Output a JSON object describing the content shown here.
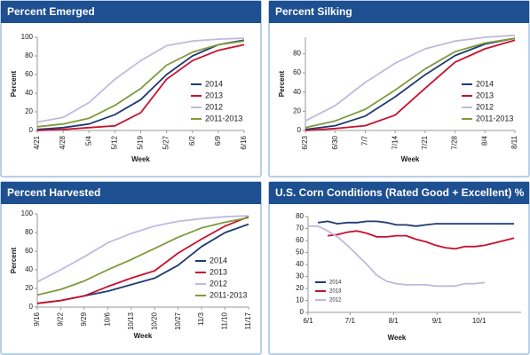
{
  "chart_data": [
    {
      "type": "line",
      "title": "Percent Emerged",
      "xlabel": "Week",
      "ylabel": "Percent",
      "categories": [
        "4/21",
        "4/28",
        "5/4",
        "5/12",
        "5/19",
        "5/27",
        "6/2",
        "6/9",
        "6/16"
      ],
      "ylim": [
        0,
        100
      ],
      "yticks": [
        0,
        20,
        40,
        60,
        80,
        100
      ],
      "legend": "lower right",
      "series": [
        {
          "name": "2014",
          "color": "#1f3a73",
          "values": [
            1,
            3,
            7,
            17,
            33,
            60,
            80,
            92,
            97
          ]
        },
        {
          "name": "2013",
          "color": "#c8102e",
          "values": [
            0,
            1,
            3,
            5,
            19,
            55,
            75,
            86,
            92
          ]
        },
        {
          "name": "2012",
          "color": "#c2b8de",
          "values": [
            9,
            14,
            30,
            55,
            75,
            91,
            96,
            98,
            99
          ]
        },
        {
          "name": "2011-2013",
          "color": "#7f9a3c",
          "values": [
            4,
            7,
            13,
            27,
            45,
            70,
            84,
            92,
            96
          ]
        }
      ]
    },
    {
      "type": "line",
      "title": "Percent Silking",
      "xlabel": "Week",
      "ylabel": "Percent",
      "categories": [
        "6/23",
        "6/30",
        "7/7",
        "7/14",
        "7/21",
        "7/28",
        "8/4",
        "8/11"
      ],
      "ylim": [
        0,
        97
      ],
      "yticks": [
        0,
        20,
        40,
        60,
        80
      ],
      "legend": "lower right",
      "series": [
        {
          "name": "2014",
          "color": "#1f3a73",
          "values": [
            1,
            5,
            15,
            35,
            58,
            78,
            90,
            96
          ]
        },
        {
          "name": "2013",
          "color": "#c8102e",
          "values": [
            0,
            2,
            5,
            16,
            44,
            71,
            85,
            94
          ]
        },
        {
          "name": "2012",
          "color": "#c2b8de",
          "values": [
            10,
            26,
            50,
            70,
            85,
            93,
            97,
            99
          ]
        },
        {
          "name": "2011-2013",
          "color": "#7f9a3c",
          "values": [
            3,
            10,
            22,
            42,
            64,
            82,
            91,
            96
          ]
        }
      ]
    },
    {
      "type": "line",
      "title": "Percent Harvested",
      "xlabel": "Week",
      "ylabel": "Percent",
      "categories": [
        "9/16",
        "9/22",
        "9/29",
        "10/6",
        "10/13",
        "10/20",
        "10/27",
        "11/3",
        "11/10",
        "11/17"
      ],
      "ylim": [
        0,
        100
      ],
      "yticks": [
        0,
        20,
        40,
        60,
        80,
        100
      ],
      "legend": "lower right",
      "series": [
        {
          "name": "2014",
          "color": "#1f3a73",
          "values": [
            4,
            7,
            12,
            17,
            24,
            31,
            45,
            65,
            80,
            89
          ]
        },
        {
          "name": "2013",
          "color": "#c8102e",
          "values": [
            4,
            7,
            12,
            22,
            31,
            39,
            58,
            73,
            87,
            97
          ]
        },
        {
          "name": "2012",
          "color": "#c2b8de",
          "values": [
            27,
            40,
            54,
            69,
            79,
            87,
            92,
            95,
            97,
            98
          ]
        },
        {
          "name": "2011-2013",
          "color": "#7f9a3c",
          "values": [
            13,
            19,
            28,
            40,
            51,
            63,
            75,
            85,
            91,
            96
          ]
        }
      ]
    },
    {
      "type": "dateline",
      "title": "U.S. Corn Conditions (Rated Good + Excellent) %",
      "xlabel": "Week",
      "xlim": [
        0,
        152
      ],
      "xticks": [
        {
          "value": 0,
          "label": "6/1"
        },
        {
          "value": 30,
          "label": "7/1"
        },
        {
          "value": 61,
          "label": "8/1"
        },
        {
          "value": 92,
          "label": "9/1"
        },
        {
          "value": 122,
          "label": "10/1"
        }
      ],
      "ylim": [
        0,
        80
      ],
      "yticks": [
        0,
        10,
        20,
        30,
        40,
        50,
        60,
        70,
        80
      ],
      "legend": "center left",
      "series": [
        {
          "name": "2014",
          "color": "#1f3a73",
          "x": [
            7,
            14,
            21,
            28,
            35,
            42,
            49,
            56,
            63,
            70,
            77,
            84,
            91,
            98,
            105,
            112,
            119,
            126,
            133,
            140,
            147
          ],
          "values": [
            75,
            76,
            74,
            75,
            75,
            76,
            76,
            75,
            73,
            73,
            72,
            73,
            74,
            74,
            74,
            74,
            74,
            74,
            74,
            74,
            74
          ]
        },
        {
          "name": "2013",
          "color": "#c8102e",
          "x": [
            14,
            21,
            28,
            35,
            42,
            49,
            56,
            63,
            70,
            77,
            84,
            91,
            98,
            105,
            112,
            119,
            126,
            133,
            140,
            147
          ],
          "values": [
            64,
            65,
            67,
            68,
            66,
            63,
            63,
            64,
            64,
            61,
            59,
            56,
            54,
            53,
            55,
            55,
            56,
            58,
            60,
            62
          ]
        },
        {
          "name": "2012",
          "color": "#c2b8de",
          "x": [
            0,
            7,
            14,
            21,
            28,
            35,
            42,
            49,
            56,
            63,
            70,
            77,
            84,
            91,
            98,
            105,
            112,
            119,
            126
          ],
          "values": [
            72,
            72,
            68,
            63,
            56,
            48,
            40,
            31,
            26,
            24,
            23,
            23,
            23,
            22,
            22,
            22,
            24,
            24,
            25
          ]
        }
      ]
    }
  ]
}
